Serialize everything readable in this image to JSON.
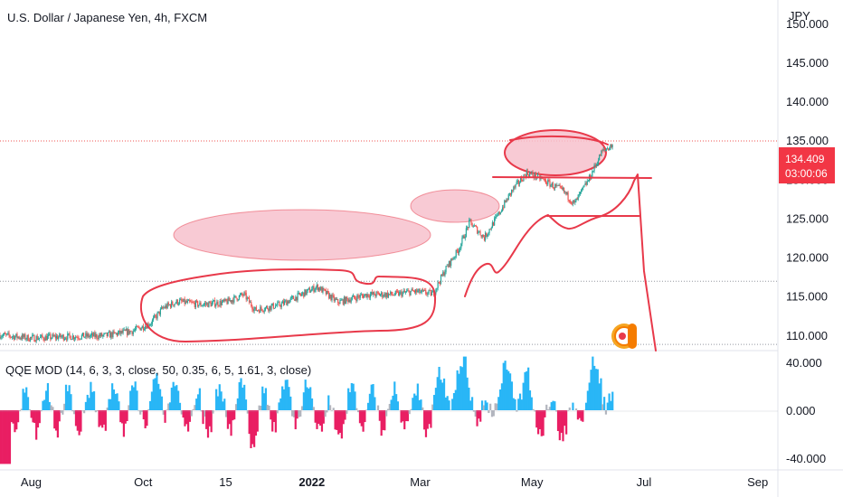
{
  "title": "U.S. Dollar / Japanese Yen, 4h, FXCM",
  "currency_label": "JPY",
  "indicator_label": "QQE MOD (14, 6, 3, 3, close, 50, 0.35, 6, 5, 1.61, 3, close)",
  "last_price": "134.409",
  "countdown": "03:00:06",
  "colors": {
    "up_candle": "#26a69a",
    "down_candle": "#ef5350",
    "annotation": "#e8394a",
    "ellipse_fill": "#f7c1cc",
    "qqe_up": "#29b6f6",
    "qqe_down": "#e91e63",
    "qqe_neutral": "#b2b5be",
    "price_badge": "#f23645"
  },
  "chart_data": [
    {
      "type": "candlestick",
      "title": "U.S. Dollar / Japanese Yen, 4h, FXCM",
      "ylabel": "JPY",
      "y_ticks": [
        110,
        115,
        120,
        125,
        130,
        135,
        140,
        145,
        150
      ],
      "y_tick_labels": [
        "110.000",
        "115.000",
        "120.000",
        "125.000",
        "130.000",
        "135.000",
        "140.000",
        "145.000",
        "150.000"
      ],
      "ylim": [
        108,
        153
      ],
      "x_tick_labels": [
        "Aug",
        "Oct",
        "15",
        "2022",
        "Mar",
        "May",
        "Jul",
        "Sep"
      ],
      "x_tick_dates": [
        "2021-08-01",
        "2021-10-01",
        "2021-11-15",
        "2022-01-01",
        "2022-03-01",
        "2022-05-01",
        "2022-07-01",
        "2022-09-01"
      ],
      "xlim": [
        "2021-07-15",
        "2022-09-12"
      ],
      "price_path": [
        {
          "date": "2021-07-15",
          "close": 110.0
        },
        {
          "date": "2021-08-01",
          "close": 109.6
        },
        {
          "date": "2021-08-20",
          "close": 109.8
        },
        {
          "date": "2021-09-10",
          "close": 109.9
        },
        {
          "date": "2021-09-25",
          "close": 110.5
        },
        {
          "date": "2021-10-05",
          "close": 111.5
        },
        {
          "date": "2021-10-12",
          "close": 113.5
        },
        {
          "date": "2021-10-20",
          "close": 114.3
        },
        {
          "date": "2021-11-01",
          "close": 113.9
        },
        {
          "date": "2021-11-15",
          "close": 114.2
        },
        {
          "date": "2021-11-25",
          "close": 115.2
        },
        {
          "date": "2021-12-01",
          "close": 113.2
        },
        {
          "date": "2021-12-15",
          "close": 113.9
        },
        {
          "date": "2022-01-04",
          "close": 116.2
        },
        {
          "date": "2022-01-15",
          "close": 114.2
        },
        {
          "date": "2022-01-31",
          "close": 115.2
        },
        {
          "date": "2022-02-15",
          "close": 115.2
        },
        {
          "date": "2022-02-25",
          "close": 115.6
        },
        {
          "date": "2022-03-08",
          "close": 115.3
        },
        {
          "date": "2022-03-15",
          "close": 118.5
        },
        {
          "date": "2022-03-22",
          "close": 121.0
        },
        {
          "date": "2022-03-28",
          "close": 124.5
        },
        {
          "date": "2022-04-05",
          "close": 122.5
        },
        {
          "date": "2022-04-12",
          "close": 125.2
        },
        {
          "date": "2022-04-20",
          "close": 128.5
        },
        {
          "date": "2022-04-28",
          "close": 130.8
        },
        {
          "date": "2022-05-05",
          "close": 130.2
        },
        {
          "date": "2022-05-12",
          "close": 129.2
        },
        {
          "date": "2022-05-18",
          "close": 128.5
        },
        {
          "date": "2022-05-24",
          "close": 126.8
        },
        {
          "date": "2022-06-01",
          "close": 130.0
        },
        {
          "date": "2022-06-08",
          "close": 133.5
        },
        {
          "date": "2022-06-14",
          "close": 134.4
        }
      ],
      "horizontal_levels": [
        134.9,
        116.9,
        108.8
      ]
    },
    {
      "type": "bar",
      "title": "QQE MOD (14, 6, 3, 3, close, 50, 0.35, 6, 5, 1.61, 3, close)",
      "y_ticks": [
        40,
        0,
        -40
      ],
      "y_tick_labels": [
        "40.000",
        "0.000",
        "-40.000"
      ],
      "ylim": [
        -50,
        50
      ]
    }
  ]
}
